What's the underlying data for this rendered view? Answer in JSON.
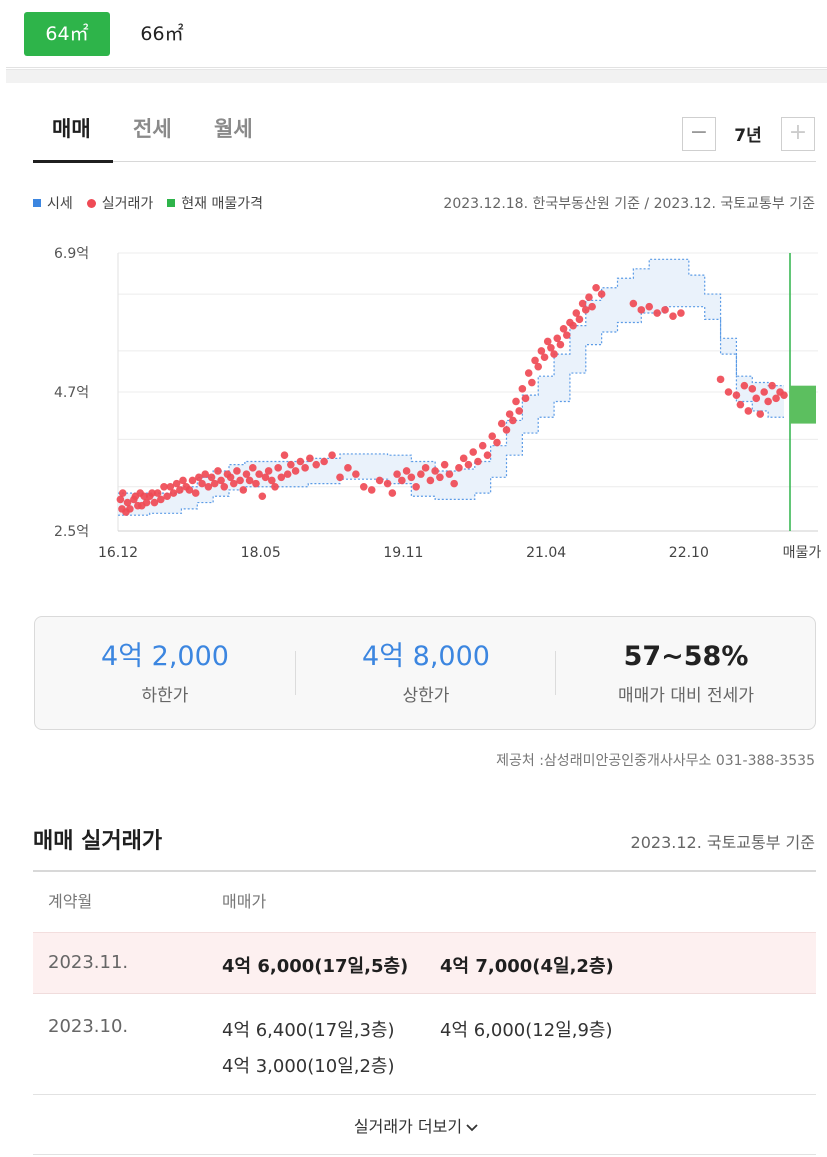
{
  "area_tabs": [
    {
      "label": "64㎡",
      "active": true
    },
    {
      "label": "66㎡",
      "active": false
    }
  ],
  "deal_tabs": [
    {
      "label": "매매",
      "active": true
    },
    {
      "label": "전세",
      "active": false
    },
    {
      "label": "월세",
      "active": false
    }
  ],
  "period": {
    "minus": "−",
    "value": "7년",
    "plus": "+"
  },
  "legend": [
    {
      "label": "시세",
      "color": "#3c86e0",
      "shape": "square"
    },
    {
      "label": "실거래가",
      "color": "#ef4a55",
      "shape": "circle"
    },
    {
      "label": "현재 매물가격",
      "color": "#2eb44a",
      "shape": "square"
    }
  ],
  "basis_note": "2023.12.18. 한국부동산원 기준 / 2023.12. 국토교통부 기준",
  "chart_data": {
    "type": "scatter",
    "y_unit": "억",
    "ylim": [
      2.5,
      6.9
    ],
    "y_ticks": [
      {
        "value": 6.9,
        "label": "6.9억"
      },
      {
        "value": 4.7,
        "label": "4.7억"
      },
      {
        "value": 2.5,
        "label": "2.5억"
      }
    ],
    "x_ticks": [
      "16.12",
      "18.05",
      "19.11",
      "21.04",
      "22.10",
      "매물가"
    ],
    "grid": true,
    "band_lower": [
      [
        0,
        2.75
      ],
      [
        4,
        2.78
      ],
      [
        8,
        2.85
      ],
      [
        10,
        2.95
      ],
      [
        12,
        3.05
      ],
      [
        14,
        3.15
      ],
      [
        16,
        3.2
      ],
      [
        20,
        3.2
      ],
      [
        24,
        3.25
      ],
      [
        28,
        3.32
      ],
      [
        32,
        3.32
      ],
      [
        34,
        3.25
      ],
      [
        37,
        3.05
      ],
      [
        40,
        3.0
      ],
      [
        43,
        3.0
      ],
      [
        45,
        3.1
      ],
      [
        47,
        3.35
      ],
      [
        49,
        3.7
      ],
      [
        51,
        4.05
      ],
      [
        53,
        4.3
      ],
      [
        55,
        4.55
      ],
      [
        57,
        5.0
      ],
      [
        59,
        5.45
      ],
      [
        61,
        5.65
      ],
      [
        63,
        5.8
      ],
      [
        66,
        5.95
      ],
      [
        69,
        6.05
      ],
      [
        72,
        6.05
      ],
      [
        74,
        5.85
      ],
      [
        76,
        5.3
      ],
      [
        78,
        4.55
      ],
      [
        80,
        4.4
      ],
      [
        82,
        4.3
      ],
      [
        84,
        4.3
      ]
    ],
    "band_upper": [
      [
        0,
        3.1
      ],
      [
        4,
        3.1
      ],
      [
        8,
        3.2
      ],
      [
        10,
        3.35
      ],
      [
        12,
        3.45
      ],
      [
        14,
        3.55
      ],
      [
        16,
        3.6
      ],
      [
        20,
        3.6
      ],
      [
        24,
        3.65
      ],
      [
        28,
        3.72
      ],
      [
        32,
        3.72
      ],
      [
        34,
        3.7
      ],
      [
        37,
        3.6
      ],
      [
        40,
        3.45
      ],
      [
        43,
        3.48
      ],
      [
        45,
        3.6
      ],
      [
        47,
        3.85
      ],
      [
        49,
        4.25
      ],
      [
        51,
        4.65
      ],
      [
        53,
        4.95
      ],
      [
        55,
        5.3
      ],
      [
        57,
        5.75
      ],
      [
        59,
        6.15
      ],
      [
        61,
        6.35
      ],
      [
        63,
        6.5
      ],
      [
        65,
        6.65
      ],
      [
        67,
        6.8
      ],
      [
        70,
        6.8
      ],
      [
        72,
        6.55
      ],
      [
        74,
        6.25
      ],
      [
        76,
        5.55
      ],
      [
        78,
        4.95
      ],
      [
        80,
        4.85
      ],
      [
        82,
        4.8
      ],
      [
        84,
        4.8
      ]
    ],
    "trades": [
      [
        0.3,
        3.0
      ],
      [
        0.5,
        2.85
      ],
      [
        0.6,
        3.1
      ],
      [
        1.0,
        2.8
      ],
      [
        1.2,
        2.95
      ],
      [
        1.5,
        2.85
      ],
      [
        2.0,
        3.0
      ],
      [
        2.2,
        3.05
      ],
      [
        2.5,
        2.9
      ],
      [
        2.8,
        3.1
      ],
      [
        3.0,
        2.9
      ],
      [
        3.3,
        3.05
      ],
      [
        3.6,
        2.95
      ],
      [
        4.0,
        3.05
      ],
      [
        4.3,
        3.1
      ],
      [
        4.6,
        2.95
      ],
      [
        5.0,
        3.1
      ],
      [
        5.4,
        3.0
      ],
      [
        5.8,
        3.2
      ],
      [
        6.2,
        3.05
      ],
      [
        6.6,
        3.2
      ],
      [
        7.0,
        3.1
      ],
      [
        7.4,
        3.25
      ],
      [
        7.8,
        3.15
      ],
      [
        8.2,
        3.3
      ],
      [
        8.6,
        3.2
      ],
      [
        9.0,
        3.15
      ],
      [
        9.4,
        3.3
      ],
      [
        9.8,
        3.1
      ],
      [
        10.2,
        3.35
      ],
      [
        10.6,
        3.25
      ],
      [
        11.0,
        3.4
      ],
      [
        11.4,
        3.2
      ],
      [
        11.8,
        3.35
      ],
      [
        12.2,
        3.25
      ],
      [
        12.6,
        3.45
      ],
      [
        13.0,
        3.3
      ],
      [
        13.4,
        3.2
      ],
      [
        13.8,
        3.4
      ],
      [
        14.2,
        3.35
      ],
      [
        14.6,
        3.25
      ],
      [
        15.0,
        3.45
      ],
      [
        15.4,
        3.3
      ],
      [
        15.8,
        3.15
      ],
      [
        16.2,
        3.4
      ],
      [
        16.6,
        3.3
      ],
      [
        17.0,
        3.5
      ],
      [
        17.4,
        3.25
      ],
      [
        17.8,
        3.4
      ],
      [
        18.2,
        3.05
      ],
      [
        18.6,
        3.35
      ],
      [
        19.0,
        3.45
      ],
      [
        19.4,
        3.3
      ],
      [
        19.8,
        3.2
      ],
      [
        20.2,
        3.5
      ],
      [
        20.6,
        3.35
      ],
      [
        21.0,
        3.7
      ],
      [
        21.4,
        3.4
      ],
      [
        21.8,
        3.55
      ],
      [
        22.4,
        3.45
      ],
      [
        23.0,
        3.6
      ],
      [
        23.6,
        3.5
      ],
      [
        24.2,
        3.65
      ],
      [
        25.0,
        3.55
      ],
      [
        26.0,
        3.6
      ],
      [
        27.0,
        3.7
      ],
      [
        28.0,
        3.35
      ],
      [
        29.0,
        3.5
      ],
      [
        30.0,
        3.4
      ],
      [
        31.0,
        3.2
      ],
      [
        32.0,
        3.15
      ],
      [
        33.0,
        3.3
      ],
      [
        34.0,
        3.25
      ],
      [
        34.6,
        3.1
      ],
      [
        35.2,
        3.4
      ],
      [
        35.8,
        3.3
      ],
      [
        36.4,
        3.45
      ],
      [
        37.0,
        3.35
      ],
      [
        37.6,
        3.2
      ],
      [
        38.2,
        3.4
      ],
      [
        38.8,
        3.5
      ],
      [
        39.4,
        3.3
      ],
      [
        40.0,
        3.45
      ],
      [
        40.6,
        3.35
      ],
      [
        41.2,
        3.55
      ],
      [
        41.8,
        3.4
      ],
      [
        42.4,
        3.25
      ],
      [
        43.0,
        3.5
      ],
      [
        43.6,
        3.65
      ],
      [
        44.2,
        3.55
      ],
      [
        44.8,
        3.75
      ],
      [
        45.4,
        3.6
      ],
      [
        46.0,
        3.85
      ],
      [
        46.6,
        3.7
      ],
      [
        47.2,
        4.0
      ],
      [
        47.8,
        3.9
      ],
      [
        48.4,
        4.2
      ],
      [
        49.0,
        4.1
      ],
      [
        49.4,
        4.35
      ],
      [
        49.8,
        4.25
      ],
      [
        50.2,
        4.55
      ],
      [
        50.6,
        4.4
      ],
      [
        51.0,
        4.75
      ],
      [
        51.4,
        4.6
      ],
      [
        51.8,
        5.0
      ],
      [
        52.2,
        4.85
      ],
      [
        52.6,
        5.2
      ],
      [
        53.0,
        5.1
      ],
      [
        53.4,
        5.35
      ],
      [
        53.8,
        5.25
      ],
      [
        54.2,
        5.5
      ],
      [
        54.6,
        5.4
      ],
      [
        55.0,
        5.3
      ],
      [
        55.4,
        5.55
      ],
      [
        55.8,
        5.45
      ],
      [
        56.2,
        5.7
      ],
      [
        56.6,
        5.6
      ],
      [
        57.0,
        5.8
      ],
      [
        57.4,
        5.75
      ],
      [
        57.8,
        5.95
      ],
      [
        58.2,
        5.85
      ],
      [
        58.6,
        6.1
      ],
      [
        59.0,
        6.0
      ],
      [
        59.4,
        6.2
      ],
      [
        59.8,
        6.05
      ],
      [
        60.3,
        6.35
      ],
      [
        61.0,
        6.25
      ],
      [
        65.0,
        6.1
      ],
      [
        66.0,
        6.0
      ],
      [
        67.0,
        6.05
      ],
      [
        68.0,
        5.95
      ],
      [
        69.0,
        6.0
      ],
      [
        70.0,
        5.9
      ],
      [
        71.0,
        5.95
      ],
      [
        76.0,
        4.9
      ],
      [
        77.0,
        4.7
      ],
      [
        78.0,
        4.65
      ],
      [
        78.5,
        4.5
      ],
      [
        79.0,
        4.8
      ],
      [
        79.5,
        4.4
      ],
      [
        80.0,
        4.75
      ],
      [
        80.5,
        4.6
      ],
      [
        81.0,
        4.35
      ],
      [
        81.5,
        4.7
      ],
      [
        82.0,
        4.55
      ],
      [
        82.5,
        4.8
      ],
      [
        83.0,
        4.6
      ],
      [
        83.5,
        4.7
      ],
      [
        84.0,
        4.65
      ]
    ],
    "current_listing": {
      "low": 4.2,
      "high": 4.8
    }
  },
  "summary": [
    {
      "value": "4억 2,000",
      "label": "하한가"
    },
    {
      "value": "4억 8,000",
      "label": "상한가"
    },
    {
      "value": "57~58%",
      "label": "매매가 대비 전세가"
    }
  ],
  "provider": "제공처 :삼성래미안공인중개사사무소 031-388-3535",
  "trades_section": {
    "title": "매매 실거래가",
    "basis": "2023.12. 국토교통부 기준",
    "headers": [
      "계약월",
      "매매가"
    ],
    "rows": [
      {
        "month": "2023.11.",
        "deals": [
          "4억 6,000(17일,5층)",
          "4억 7,000(4일,2층)"
        ]
      },
      {
        "month": "2023.10.",
        "deals": [
          "4억 6,400(17일,3층)",
          "4억 6,000(12일,9층)",
          "4억 3,000(10일,2층)"
        ]
      }
    ],
    "more_label": "실거래가 더보기"
  }
}
